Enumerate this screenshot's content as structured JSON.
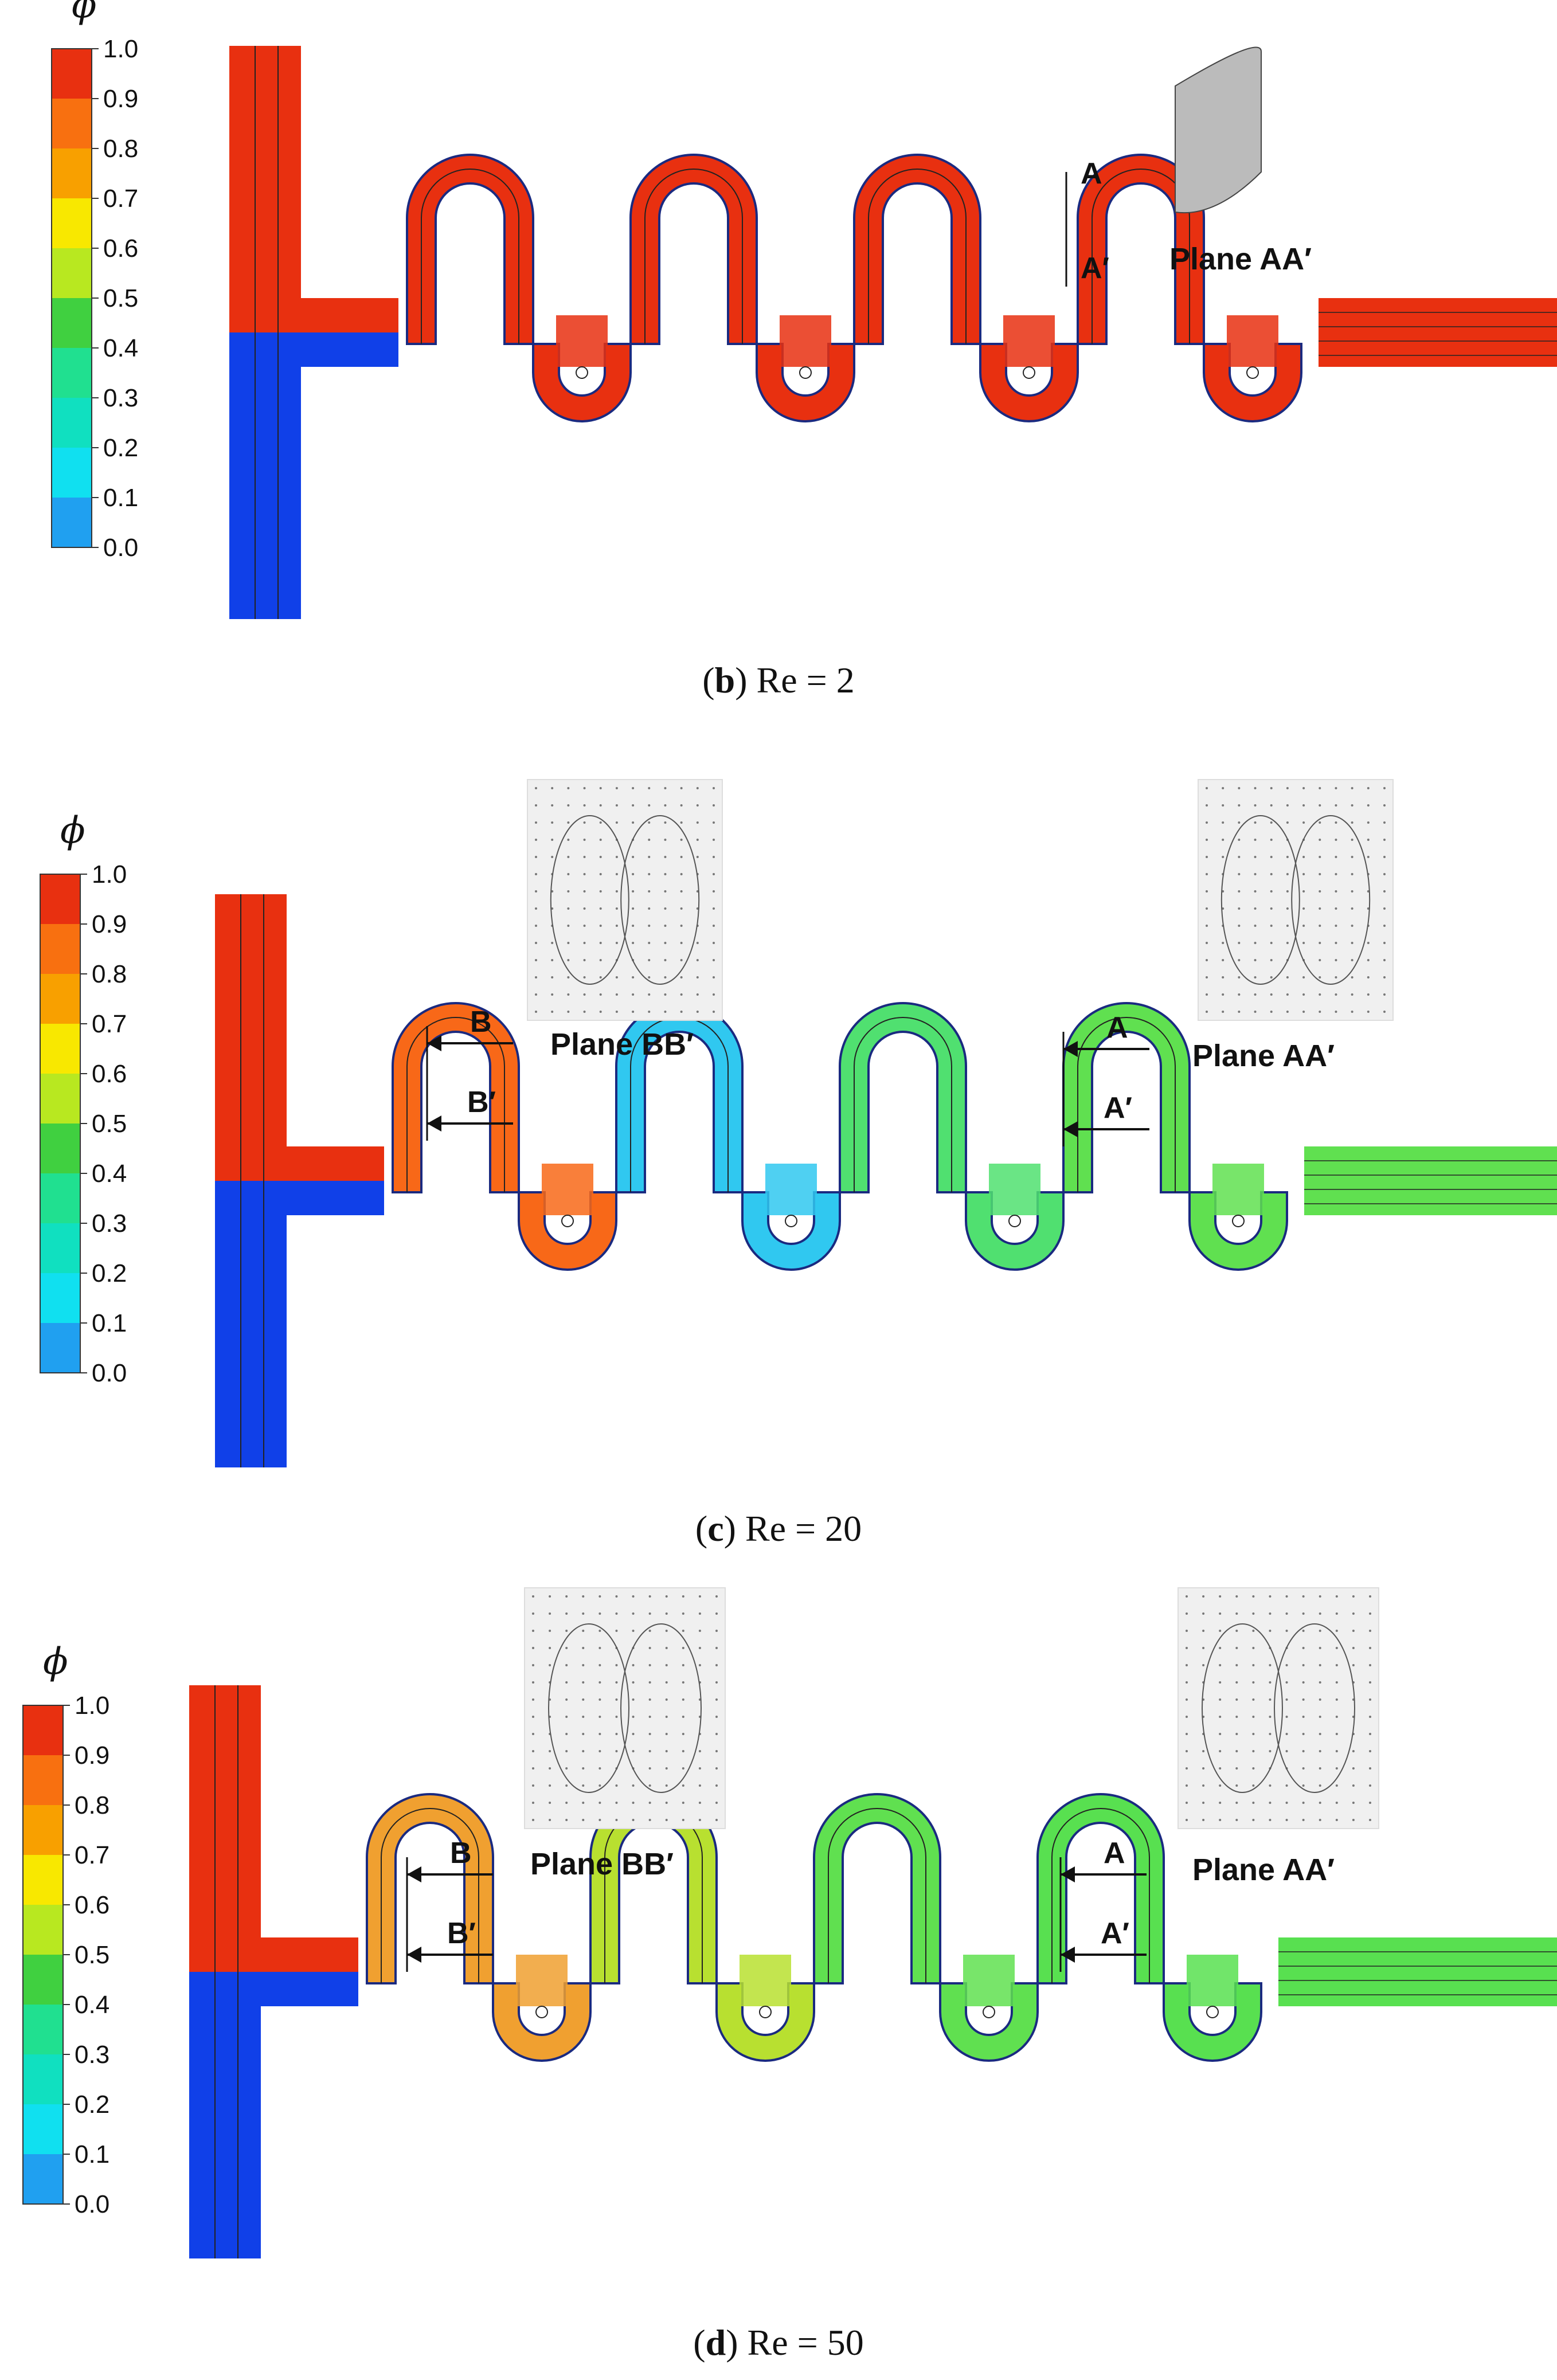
{
  "colorbar": {
    "symbol": "ϕ",
    "ticks": [
      "1.0",
      "0.9",
      "0.8",
      "0.7",
      "0.6",
      "0.5",
      "0.4",
      "0.3",
      "0.2",
      "0.1",
      "0.0"
    ],
    "colors": [
      "#e83010",
      "#f87010",
      "#f8a000",
      "#f8e800",
      "#b8e820",
      "#40d040",
      "#20e090",
      "#10e0c0",
      "#10e0f0",
      "#20a0f0",
      "#1040e8"
    ]
  },
  "panels": [
    {
      "id": "b",
      "caption_letter": "b",
      "caption_rest": " Re = 2",
      "labels": {
        "a": "A",
        "a_prime": "A′",
        "plane_a": "Plane AA′"
      },
      "channel_colors": [
        "#e83010",
        "#e83010",
        "#e83010",
        "#e83010",
        "#e83010"
      ]
    },
    {
      "id": "c",
      "caption_letter": "c",
      "caption_rest": " Re = 20",
      "labels": {
        "a": "A",
        "a_prime": "A′",
        "plane_a": "Plane AA′",
        "b": "B",
        "b_prime": "B′",
        "plane_b": "Plane BB′"
      },
      "channel_colors": [
        "#e83010",
        "#f86818",
        "#30c8f0",
        "#50e070",
        "#60e050"
      ]
    },
    {
      "id": "d",
      "caption_letter": "d",
      "caption_rest": " Re = 50",
      "labels": {
        "a": "A",
        "a_prime": "A′",
        "plane_a": "Plane AA′",
        "b": "B",
        "b_prime": "B′",
        "plane_b": "Plane BB′"
      },
      "channel_colors": [
        "#e83010",
        "#f0a030",
        "#b8e030",
        "#60e050",
        "#58e050"
      ]
    }
  ]
}
